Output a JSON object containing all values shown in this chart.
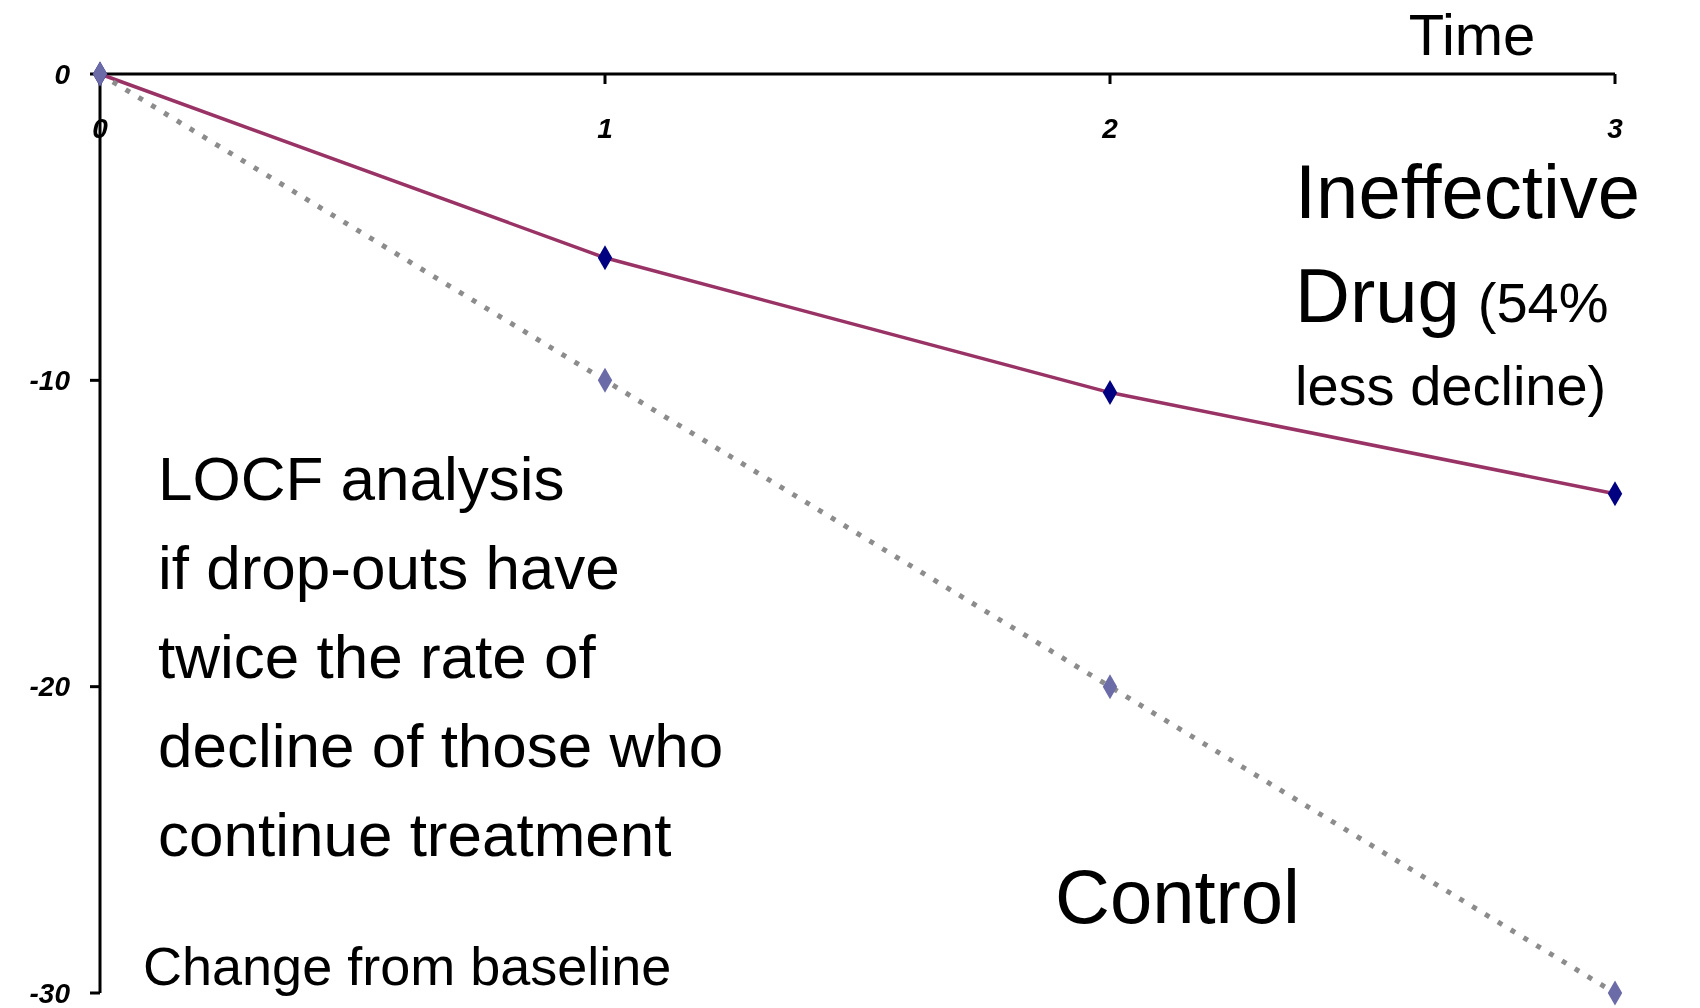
{
  "chart_data": {
    "type": "line",
    "xlabel": "Time",
    "ylabel": "Change from baseline",
    "x": [
      0,
      1,
      2,
      3
    ],
    "xlim": [
      0,
      3
    ],
    "xticks": [
      0,
      1,
      2,
      3
    ],
    "ylim": [
      -30,
      0
    ],
    "yticks": [
      0,
      -10,
      -20,
      -30
    ],
    "marker": "diamond",
    "grid": false,
    "series": [
      {
        "name": "Ineffective Drug (54% less decline)",
        "color": "#993366",
        "line_style": "solid",
        "values": [
          0,
          -6,
          -10.4,
          -13.7
        ]
      },
      {
        "name": "Control",
        "color": "#6b6ba8",
        "line_style": "dotted",
        "values": [
          0,
          -10,
          -20,
          -30
        ]
      }
    ],
    "annotations": [
      "LOCF analysis\nif drop-outs have\ntwice the rate of\ndecline of those who\ncontinue treatment"
    ]
  }
}
